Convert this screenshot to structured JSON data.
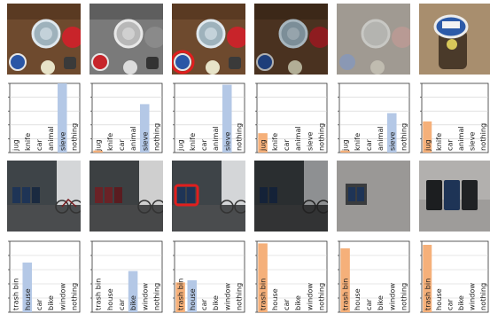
{
  "figure": {
    "rows": [
      {
        "scene": "kitchen",
        "panels": [
          {
            "variant": "original",
            "highlight": false
          },
          {
            "variant": "grayscale",
            "highlight": false
          },
          {
            "variant": "red-highlight",
            "highlight": true
          },
          {
            "variant": "darkened",
            "highlight": false
          },
          {
            "variant": "faded-center",
            "highlight": false
          },
          {
            "variant": "zoom-jar",
            "highlight": false
          }
        ]
      },
      {
        "scene": "street",
        "panels": [
          {
            "variant": "original",
            "highlight": false
          },
          {
            "variant": "red-tint-bins",
            "highlight": false
          },
          {
            "variant": "red-box-bins",
            "highlight": true
          },
          {
            "variant": "darkened",
            "highlight": false
          },
          {
            "variant": "faded-bins",
            "highlight": false
          },
          {
            "variant": "zoom-bins",
            "highlight": false
          }
        ]
      }
    ]
  },
  "chart_data": [
    {
      "type": "bar",
      "group": "kitchen",
      "panel": 1,
      "categories": [
        "jug",
        "knife",
        "car",
        "animal",
        "sieve",
        "nothing"
      ],
      "values": [
        0,
        0,
        0,
        0,
        1.0,
        0
      ],
      "colors": [
        "#f5b07a",
        "#f5b07a",
        "#b4c8e6",
        "#b4c8e6",
        "#b4c8e6",
        "#b4c8e6"
      ],
      "ylim": [
        0,
        1
      ]
    },
    {
      "type": "bar",
      "group": "kitchen",
      "panel": 2,
      "categories": [
        "jug",
        "knife",
        "car",
        "animal",
        "sieve",
        "nothing"
      ],
      "values": [
        0.03,
        0,
        0,
        0,
        0.7,
        0
      ],
      "colors": [
        "#f5b07a",
        "#f5b07a",
        "#b4c8e6",
        "#b4c8e6",
        "#b4c8e6",
        "#b4c8e6"
      ],
      "ylim": [
        0,
        1
      ]
    },
    {
      "type": "bar",
      "group": "kitchen",
      "panel": 3,
      "categories": [
        "jug",
        "knife",
        "car",
        "animal",
        "sieve",
        "nothing"
      ],
      "values": [
        0,
        0,
        0,
        0,
        0.98,
        0
      ],
      "colors": [
        "#f5b07a",
        "#f5b07a",
        "#b4c8e6",
        "#b4c8e6",
        "#b4c8e6",
        "#b4c8e6"
      ],
      "ylim": [
        0,
        1
      ]
    },
    {
      "type": "bar",
      "group": "kitchen",
      "panel": 4,
      "categories": [
        "jug",
        "knife",
        "car",
        "animal",
        "sieve",
        "nothing"
      ],
      "values": [
        0.28,
        0,
        0,
        0,
        0,
        0
      ],
      "colors": [
        "#f5b07a",
        "#f5b07a",
        "#b4c8e6",
        "#b4c8e6",
        "#b4c8e6",
        "#b4c8e6"
      ],
      "ylim": [
        0,
        1
      ]
    },
    {
      "type": "bar",
      "group": "kitchen",
      "panel": 5,
      "categories": [
        "jug",
        "knife",
        "car",
        "animal",
        "sieve",
        "nothing"
      ],
      "values": [
        0.03,
        0,
        0,
        0,
        0.57,
        0
      ],
      "colors": [
        "#f5b07a",
        "#f5b07a",
        "#b4c8e6",
        "#b4c8e6",
        "#b4c8e6",
        "#b4c8e6"
      ],
      "ylim": [
        0,
        1
      ]
    },
    {
      "type": "bar",
      "group": "kitchen",
      "panel": 6,
      "categories": [
        "jug",
        "knife",
        "car",
        "animal",
        "sieve",
        "nothing"
      ],
      "values": [
        0.45,
        0,
        0,
        0,
        0,
        0
      ],
      "colors": [
        "#f5b07a",
        "#f5b07a",
        "#b4c8e6",
        "#b4c8e6",
        "#b4c8e6",
        "#b4c8e6"
      ],
      "ylim": [
        0,
        1
      ]
    },
    {
      "type": "bar",
      "group": "street",
      "panel": 1,
      "categories": [
        "trash bin",
        "house",
        "car",
        "bike",
        "window",
        "nothing"
      ],
      "values": [
        0,
        0.7,
        0,
        0,
        0,
        0
      ],
      "colors": [
        "#f5b07a",
        "#b4c8e6",
        "#b4c8e6",
        "#b4c8e6",
        "#b4c8e6",
        "#b4c8e6"
      ],
      "ylim": [
        0,
        1
      ]
    },
    {
      "type": "bar",
      "group": "street",
      "panel": 2,
      "categories": [
        "trash bin",
        "house",
        "car",
        "bike",
        "window",
        "nothing"
      ],
      "values": [
        0,
        0,
        0,
        0.58,
        0,
        0
      ],
      "colors": [
        "#f5b07a",
        "#b4c8e6",
        "#b4c8e6",
        "#b4c8e6",
        "#b4c8e6",
        "#b4c8e6"
      ],
      "ylim": [
        0,
        1
      ]
    },
    {
      "type": "bar",
      "group": "street",
      "panel": 3,
      "categories": [
        "trash bin",
        "house",
        "car",
        "bike",
        "window",
        "nothing"
      ],
      "values": [
        0.42,
        0.45,
        0,
        0,
        0,
        0
      ],
      "colors": [
        "#f5b07a",
        "#b4c8e6",
        "#b4c8e6",
        "#b4c8e6",
        "#b4c8e6",
        "#b4c8e6"
      ],
      "ylim": [
        0,
        1
      ]
    },
    {
      "type": "bar",
      "group": "street",
      "panel": 4,
      "categories": [
        "trash bin",
        "house",
        "car",
        "bike",
        "window",
        "nothing"
      ],
      "values": [
        0.97,
        0,
        0,
        0,
        0,
        0
      ],
      "colors": [
        "#f5b07a",
        "#b4c8e6",
        "#b4c8e6",
        "#b4c8e6",
        "#b4c8e6",
        "#b4c8e6"
      ],
      "ylim": [
        0,
        1
      ]
    },
    {
      "type": "bar",
      "group": "street",
      "panel": 5,
      "categories": [
        "trash bin",
        "house",
        "car",
        "bike",
        "window",
        "nothing"
      ],
      "values": [
        0.9,
        0,
        0,
        0,
        0,
        0
      ],
      "colors": [
        "#f5b07a",
        "#b4c8e6",
        "#b4c8e6",
        "#b4c8e6",
        "#b4c8e6",
        "#b4c8e6"
      ],
      "ylim": [
        0,
        1
      ]
    },
    {
      "type": "bar",
      "group": "street",
      "panel": 6,
      "categories": [
        "trash bin",
        "house",
        "car",
        "bike",
        "window",
        "nothing"
      ],
      "values": [
        0.95,
        0,
        0,
        0,
        0,
        0
      ],
      "colors": [
        "#f5b07a",
        "#b4c8e6",
        "#b4c8e6",
        "#b4c8e6",
        "#b4c8e6",
        "#b4c8e6"
      ],
      "ylim": [
        0,
        1
      ]
    }
  ]
}
